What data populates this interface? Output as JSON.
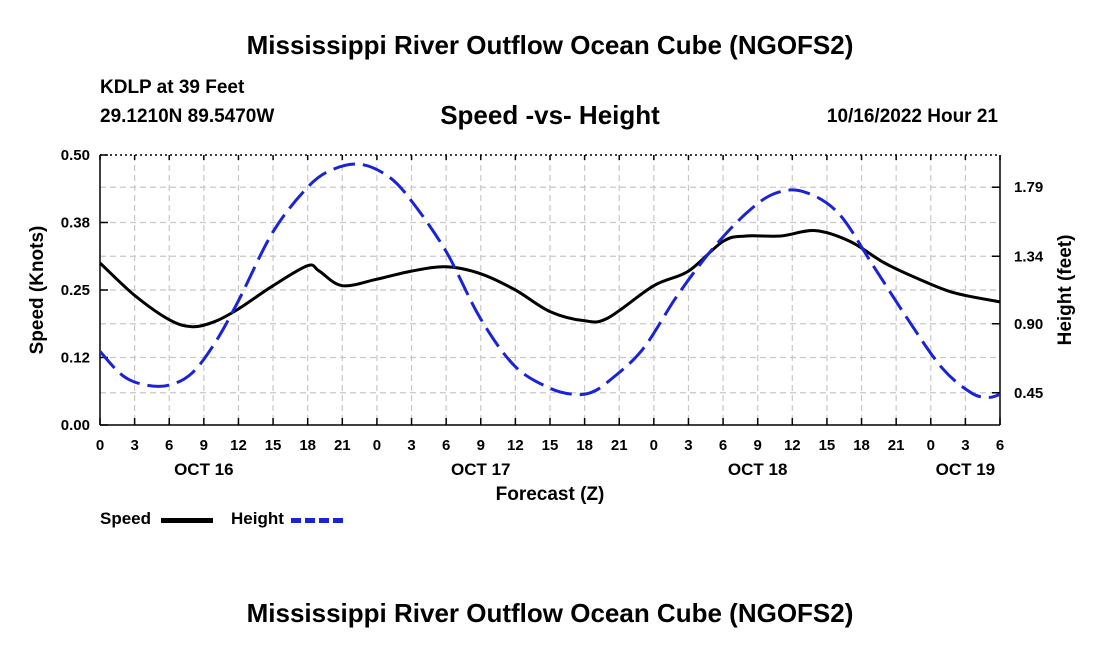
{
  "header": {
    "title": "Mississippi River Outflow Ocean Cube (NGOFS2)",
    "station": "KDLP at 39 Feet",
    "coords": "29.1210N  89.5470W",
    "subtitle": "Speed -vs- Height",
    "datetime": "10/16/2022 Hour 21"
  },
  "footer": {
    "title": "Mississippi River Outflow Ocean Cube (NGOFS2)"
  },
  "legend": {
    "speed": "Speed",
    "height": "Height"
  },
  "colors": {
    "speed": "#000000",
    "height": "#1a23d6",
    "grid": "#c8c8c8"
  },
  "chart_data": {
    "type": "line",
    "title": "Speed -vs- Height",
    "xlabel": "Forecast (Z)",
    "ylabel": "Speed (Knots)",
    "y2label": "Height (feet)",
    "xlim": [
      0,
      78
    ],
    "ylim": [
      0,
      0.5
    ],
    "y2lim": [
      0.24,
      2.0
    ],
    "grid": true,
    "x_tick_labels": [
      "0",
      "3",
      "6",
      "9",
      "12",
      "15",
      "18",
      "21",
      "0",
      "3",
      "6",
      "9",
      "12",
      "15",
      "18",
      "21",
      "0",
      "3",
      "6",
      "9",
      "12",
      "15",
      "18",
      "21",
      "0",
      "3",
      "6"
    ],
    "day_labels": [
      {
        "x": 9,
        "label": "OCT 16"
      },
      {
        "x": 33,
        "label": "OCT 17"
      },
      {
        "x": 57,
        "label": "OCT 18"
      },
      {
        "x": 75,
        "label": "OCT 19"
      }
    ],
    "y_ticks": [
      {
        "value": 0.0,
        "label": "0.00"
      },
      {
        "value": 0.125,
        "label": "0.12"
      },
      {
        "value": 0.25,
        "label": "0.25"
      },
      {
        "value": 0.375,
        "label": "0.38"
      },
      {
        "value": 0.5,
        "label": "0.50"
      }
    ],
    "y2_ticks": [
      {
        "value": 0.45,
        "label": "0.45"
      },
      {
        "value": 0.9,
        "label": "0.90"
      },
      {
        "value": 1.34,
        "label": "1.34"
      },
      {
        "value": 1.79,
        "label": "1.79"
      }
    ],
    "series": [
      {
        "name": "Speed",
        "axis": "left",
        "style": "solid",
        "x": [
          0,
          3,
          6,
          8,
          10,
          12,
          15,
          18,
          19,
          21,
          24,
          27,
          30,
          33,
          36,
          39,
          42,
          44,
          48,
          51,
          54,
          56,
          59,
          62,
          65,
          68,
          71,
          74,
          78
        ],
        "y": [
          0.3,
          0.24,
          0.195,
          0.182,
          0.192,
          0.215,
          0.258,
          0.295,
          0.285,
          0.258,
          0.27,
          0.285,
          0.293,
          0.28,
          0.25,
          0.21,
          0.193,
          0.198,
          0.258,
          0.285,
          0.34,
          0.35,
          0.35,
          0.36,
          0.34,
          0.3,
          0.27,
          0.245,
          0.228
        ]
      },
      {
        "name": "Height",
        "axis": "right",
        "style": "dashed",
        "x": [
          0,
          2,
          4,
          6,
          8,
          10,
          12,
          15,
          18,
          20,
          22.5,
          25,
          27,
          30,
          33,
          36,
          39,
          41,
          42.5,
          44,
          47,
          50,
          53,
          56,
          58.5,
          61,
          64,
          67,
          70,
          73,
          75.5,
          77,
          78
        ],
        "y": [
          0.72,
          0.56,
          0.5,
          0.5,
          0.58,
          0.78,
          1.05,
          1.5,
          1.79,
          1.9,
          1.94,
          1.86,
          1.7,
          1.37,
          0.93,
          0.62,
          0.48,
          0.44,
          0.45,
          0.52,
          0.73,
          1.08,
          1.38,
          1.62,
          1.75,
          1.76,
          1.62,
          1.28,
          0.93,
          0.61,
          0.45,
          0.42,
          0.44
        ]
      }
    ]
  }
}
